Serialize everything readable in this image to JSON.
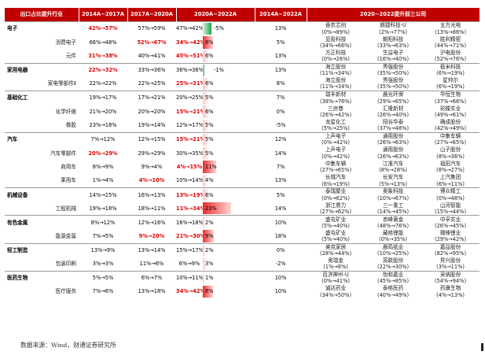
{
  "headers": [
    "出口占比提升行业",
    "2014A~2017A",
    "2017A~2020A",
    "2020A~2022A",
    "2014A~2022A",
    "2020~2022提升前三公司"
  ],
  "rows": [
    {
      "cat": "电子",
      "sub": "",
      "c1": "42%→57%",
      "c2": "57%→59%",
      "c3": "47%→42%",
      "bar": "-5%",
      "barv": -5,
      "c5": "13%",
      "hl": [
        1,
        0,
        0
      ],
      "co": [
        "香农芯创\n(0%→89%)",
        "朗捷科技-U\n(2%→77%)",
        "五方光电\n(13%→86%)"
      ]
    },
    {
      "cat": "",
      "sub": "消费电子",
      "c1": "66%→48%",
      "c2": "52%→67%",
      "c3": "34%→42%",
      "bar": "8%",
      "barv": 8,
      "c5": "5%",
      "hl": [
        0,
        1,
        1
      ],
      "co": [
        "显盈科技\n(34%→66%)",
        "朝阳科技\n(33%→63%)",
        "胜利精密\n(44%→71%)"
      ]
    },
    {
      "cat": "",
      "sub": "元件",
      "c1": "31%→38%",
      "c2": "40%→41%",
      "c3": "45%→51%",
      "bar": "6%",
      "barv": 6,
      "c5": "13%",
      "hl": [
        1,
        0,
        1
      ],
      "co": [
        "方正科技\n(0%→26%)",
        "生益电子\n(16%→40%)",
        "沪电股份\n(52%→76%)"
      ]
    },
    {
      "cat": "家用电器",
      "sub": "",
      "c1": "22%→32%",
      "c2": "33%→36%",
      "c3": "36%→36%",
      "bar": "-1%",
      "barv": -1,
      "c5": "13%",
      "hl": [
        1,
        0,
        0
      ],
      "co": [
        "海立股份\n(11%→34%)",
        "秀强股份\n(35%→50%)",
        "极米科技\n(6%→19%)"
      ]
    },
    {
      "cat": "",
      "sub": "家电零部件Ⅱ",
      "c1": "22%→22%",
      "c2": "22%→25%",
      "c3": "25%→31%",
      "bar": "6%",
      "barv": 6,
      "c5": "8%",
      "hl": [
        0,
        0,
        1
      ],
      "co": [
        "海立股份\n(11%→34%)",
        "秀强股份\n(35%→50%)",
        "星帅尔\n(6%→19%)"
      ]
    },
    {
      "cat": "基础化工",
      "sub": "",
      "c1": "19%→17%",
      "c2": "17%→21%",
      "c3": "20%→25%",
      "bar": "5%",
      "barv": 5,
      "c5": "7%",
      "hl": [
        0,
        0,
        0
      ],
      "co": [
        "瑞丰新材\n(38%→76%)",
        "晨光环保\n(29%→65%)",
        "华恒生物\n(37%→66%)"
      ]
    },
    {
      "cat": "",
      "sub": "化学纤维",
      "c1": "21%→20%",
      "c2": "20%→20%",
      "c3": "15%→21%",
      "bar": "6%",
      "barv": 6,
      "c5": "0%",
      "hl": [
        0,
        0,
        1
      ],
      "co": [
        "三房巷\n(26%→42%)",
        "汇隆新材\n(26%→40%)",
        "彩蝶实业\n(49%→61%)"
      ]
    },
    {
      "cat": "",
      "sub": "橡胶",
      "c1": "23%→18%",
      "c2": "19%→14%",
      "c3": "12%→17%",
      "bar": "5%",
      "barv": 5,
      "c5": "-5%",
      "hl": [
        0,
        0,
        0
      ],
      "co": [
        "龙星化工\n(5%→25%)",
        "阳谷华泰\n(37%→48%)",
        "确成股份\n(42%→49%)"
      ]
    },
    {
      "cat": "汽车",
      "sub": "",
      "c1": "7%→12%",
      "c2": "12%→15%",
      "c3": "15%→21%",
      "bar": "5%",
      "barv": 5,
      "c5": "12%",
      "hl": [
        0,
        0,
        1
      ],
      "co": [
        "上声电子\n(0%→42%)",
        "通用股份\n(26%→63%)",
        "中集车辆\n(27%→65%)"
      ]
    },
    {
      "cat": "",
      "sub": "汽车零部件",
      "c1": "20%→29%",
      "c2": "29%→29%",
      "c3": "30%→35%",
      "bar": "5%",
      "barv": 5,
      "c5": "14%",
      "hl": [
        1,
        0,
        0
      ],
      "co": [
        "上声电子\n(0%→42%)",
        "通用股份\n(26%→63%)",
        "山子股份\n(8%→36%)"
      ]
    },
    {
      "cat": "",
      "sub": "商用车",
      "c1": "8%→9%",
      "c2": "9%→4%",
      "c3": "4%→15%",
      "bar": "11%",
      "barv": 11,
      "c5": "7%",
      "hl": [
        0,
        0,
        1
      ],
      "co": [
        "中集车辆\n(27%→65%)",
        "江淮汽车\n(8%→28%)",
        "福田汽车\n(8%→27%)"
      ]
    },
    {
      "cat": "",
      "sub": "乘用车",
      "c1": "1%→4%",
      "c2": "4%→10%",
      "c3": "10%→14%",
      "bar": "4%",
      "barv": 4,
      "c5": "13%",
      "hl": [
        0,
        1,
        0
      ],
      "co": [
        "长城汽车\n(6%→19%)",
        "长安汽车\n(5%→13%)",
        "上汽集团\n(6%→11%)"
      ]
    },
    {
      "cat": "机械设备",
      "sub": "",
      "c1": "14%→15%",
      "c2": "16%→13%",
      "c3": "13%→19%",
      "bar": "6%",
      "barv": 6,
      "c5": "5%",
      "hl": [
        0,
        0,
        1
      ],
      "co": [
        "泰瑞聚业\n(0%→62%)",
        "奥象科技\n(10%→67%)",
        "博众精工\n(0%→48%)"
      ]
    },
    {
      "cat": "",
      "sub": "工程机械",
      "c1": "19%→18%",
      "c2": "18%→11%",
      "c3": "11%→34%",
      "bar": "23%",
      "barv": 23,
      "c5": "14%",
      "hl": [
        0,
        0,
        1
      ],
      "co": [
        "浙江鼎力\n(27%→62%)",
        "三一重工\n(14%→45%)",
        "山河智能\n(15%→44%)"
      ]
    },
    {
      "cat": "有色金属",
      "sub": "",
      "c1": "8%→12%",
      "c2": "12%→16%",
      "c3": "16%→18%",
      "bar": "2%",
      "barv": 2,
      "c5": "10%",
      "hl": [
        0,
        0,
        0
      ],
      "co": [
        "盛屯矿业\n(5%→40%)",
        "赤峰黄金\n(48%→76%)",
        "中孚实业\n(26%→45%)"
      ]
    },
    {
      "cat": "",
      "sub": "能源金属",
      "c1": "7%→5%",
      "c2": "9%→20%",
      "c3": "21%→30%",
      "bar": "9%",
      "barv": 9,
      "c5": "18%",
      "hl": [
        0,
        1,
        1
      ],
      "co": [
        "盛屯矿业\n(5%→40%)",
        "藏格锂能\n(0%→35%)",
        "赣锋锂业\n(29%→42%)"
      ]
    },
    {
      "cat": "轻工制造",
      "sub": "",
      "c1": "13%→9%",
      "c2": "13%→14%",
      "c3": "15%→17%",
      "bar": "2%",
      "barv": 2,
      "c5": "0%",
      "hl": [
        0,
        0,
        0
      ],
      "co": [
        "美克家居\n(28%→44%)",
        "晨鸣纸业\n(10%→25%)",
        "嘉益股份\n(82%→95%)"
      ]
    },
    {
      "cat": "",
      "sub": "包装印刷",
      "c1": "3%→3%",
      "c2": "11%→6%",
      "c3": "6%→9%",
      "bar": "3%",
      "barv": 3,
      "c5": "-2%",
      "hl": [
        0,
        0,
        0
      ],
      "co": [
        "奥瑞金\n(1%→8%)",
        "英联股份\n(22%→30%)",
        "昇兴股份\n(3%→11%)"
      ]
    },
    {
      "cat": "医药生物",
      "sub": "",
      "c1": "5%→5%",
      "c2": "6%→7%",
      "c3": "10%→11%",
      "bar": "1%",
      "barv": 1,
      "c5": "10%",
      "hl": [
        0,
        0,
        0
      ],
      "co": [
        "百济神州-U\n(0%→41%)",
        "怡和嘉业\n(45%→85%)",
        "采纳股份\n(54%→94%)"
      ]
    },
    {
      "cat": "",
      "sub": "医疗服务",
      "c1": "7%→6%",
      "c2": "13%→18%",
      "c3": "34%→42%",
      "bar": "8%",
      "barv": 8,
      "c5": "10%",
      "hl": [
        0,
        0,
        1
      ],
      "co": [
        "诚达药业\n(34%→50%)",
        "泰格医药\n(40%→49%)",
        "药康生物\n(4%→13%)"
      ]
    }
  ],
  "source": "数据来源：Wind，财通证券研究所"
}
